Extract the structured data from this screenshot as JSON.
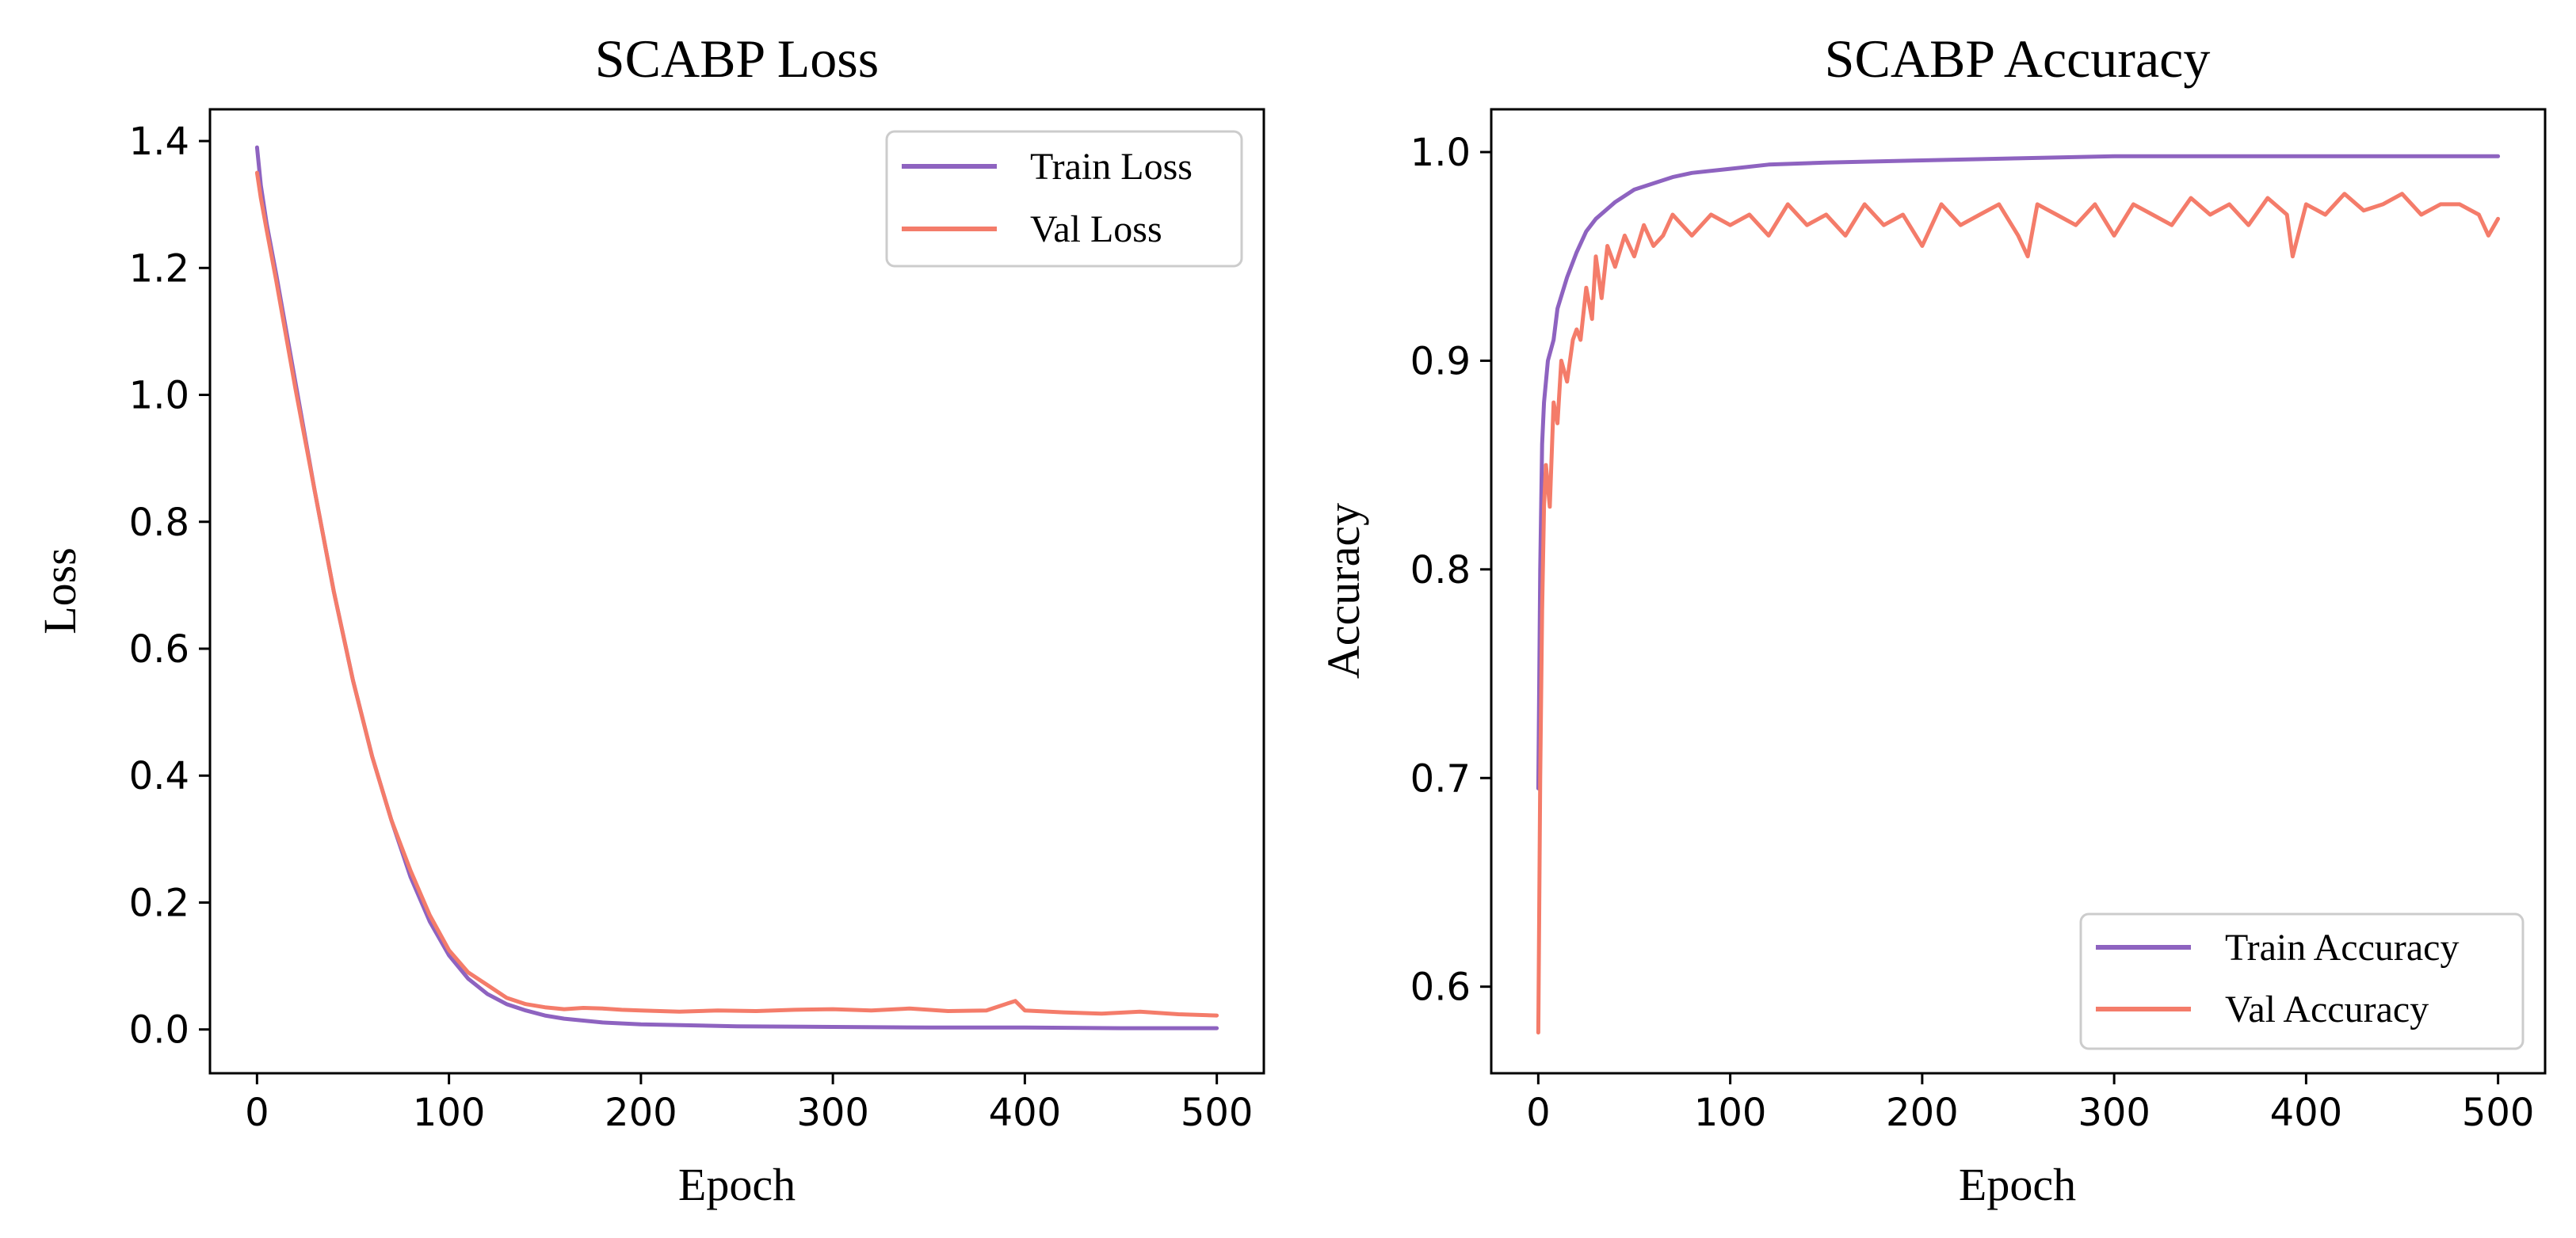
{
  "colors": {
    "train": "#8e63c0",
    "val": "#f47c6a",
    "axis": "#000000",
    "legend_border": "#cccccc"
  },
  "chart_data": [
    {
      "type": "line",
      "title": "SCABP Loss",
      "xlabel": "Epoch",
      "ylabel": "Loss",
      "xlim": [
        -24.5,
        524.5
      ],
      "ylim": [
        -0.069,
        1.45
      ],
      "xticks": [
        0,
        100,
        200,
        300,
        400,
        500
      ],
      "xtick_labels": [
        "0",
        "100",
        "200",
        "300",
        "400",
        "500"
      ],
      "yticks": [
        0.0,
        0.2,
        0.4,
        0.6,
        0.8,
        1.0,
        1.2,
        1.4
      ],
      "ytick_labels": [
        "0.0",
        "0.2",
        "0.4",
        "0.6",
        "0.8",
        "1.0",
        "1.2",
        "1.4"
      ],
      "legend": "top-right",
      "series": [
        {
          "name": "Train Loss",
          "color_key": "train",
          "x": [
            0,
            2,
            5,
            10,
            20,
            30,
            40,
            50,
            60,
            70,
            80,
            90,
            100,
            110,
            120,
            130,
            140,
            150,
            160,
            180,
            200,
            250,
            300,
            350,
            400,
            450,
            500
          ],
          "y": [
            1.39,
            1.33,
            1.27,
            1.19,
            1.02,
            0.85,
            0.69,
            0.55,
            0.43,
            0.33,
            0.24,
            0.17,
            0.117,
            0.08,
            0.056,
            0.04,
            0.03,
            0.022,
            0.017,
            0.011,
            0.008,
            0.005,
            0.004,
            0.003,
            0.003,
            0.002,
            0.002
          ]
        },
        {
          "name": "Val Loss",
          "color_key": "val",
          "x": [
            0,
            2,
            5,
            10,
            20,
            30,
            40,
            50,
            60,
            70,
            80,
            90,
            100,
            110,
            120,
            130,
            140,
            150,
            160,
            170,
            180,
            190,
            200,
            220,
            240,
            260,
            280,
            300,
            320,
            340,
            360,
            380,
            395,
            400,
            420,
            440,
            460,
            480,
            500
          ],
          "y": [
            1.35,
            1.31,
            1.26,
            1.18,
            1.01,
            0.85,
            0.69,
            0.55,
            0.43,
            0.33,
            0.25,
            0.18,
            0.125,
            0.09,
            0.07,
            0.05,
            0.04,
            0.035,
            0.032,
            0.034,
            0.033,
            0.031,
            0.03,
            0.028,
            0.03,
            0.029,
            0.031,
            0.032,
            0.03,
            0.033,
            0.029,
            0.03,
            0.045,
            0.03,
            0.027,
            0.025,
            0.028,
            0.024,
            0.022
          ]
        }
      ]
    },
    {
      "type": "line",
      "title": "SCABP Accuracy",
      "xlabel": "Epoch",
      "ylabel": "Accuracy",
      "xlim": [
        -24.5,
        524.5
      ],
      "ylim": [
        0.5585,
        1.0205
      ],
      "xticks": [
        0,
        100,
        200,
        300,
        400,
        500
      ],
      "xtick_labels": [
        "0",
        "100",
        "200",
        "300",
        "400",
        "500"
      ],
      "yticks": [
        0.6,
        0.7,
        0.8,
        0.9,
        1.0
      ],
      "ytick_labels": [
        "0.6",
        "0.7",
        "0.8",
        "0.9",
        "1.0"
      ],
      "legend": "bottom-right",
      "series": [
        {
          "name": "Train Accuracy",
          "color_key": "train",
          "x": [
            0,
            1,
            2,
            3,
            5,
            8,
            10,
            15,
            20,
            25,
            30,
            40,
            50,
            60,
            70,
            80,
            100,
            120,
            150,
            200,
            250,
            300,
            350,
            400,
            450,
            500
          ],
          "y": [
            0.695,
            0.8,
            0.86,
            0.88,
            0.9,
            0.91,
            0.925,
            0.94,
            0.952,
            0.962,
            0.968,
            0.976,
            0.982,
            0.985,
            0.988,
            0.99,
            0.992,
            0.994,
            0.995,
            0.996,
            0.997,
            0.998,
            0.998,
            0.998,
            0.998,
            0.998
          ]
        },
        {
          "name": "Val Accuracy",
          "color_key": "val",
          "x": [
            0,
            1,
            2,
            3,
            4,
            6,
            8,
            10,
            12,
            15,
            18,
            20,
            22,
            25,
            28,
            30,
            33,
            36,
            40,
            45,
            50,
            55,
            60,
            65,
            70,
            80,
            90,
            100,
            110,
            120,
            130,
            140,
            150,
            160,
            170,
            180,
            190,
            200,
            210,
            220,
            230,
            240,
            250,
            255,
            260,
            270,
            280,
            290,
            300,
            310,
            320,
            330,
            340,
            350,
            360,
            370,
            380,
            390,
            393,
            400,
            410,
            420,
            430,
            440,
            450,
            460,
            470,
            480,
            490,
            495,
            500
          ],
          "y": [
            0.578,
            0.7,
            0.78,
            0.83,
            0.85,
            0.83,
            0.88,
            0.87,
            0.9,
            0.89,
            0.91,
            0.915,
            0.91,
            0.935,
            0.92,
            0.95,
            0.93,
            0.955,
            0.945,
            0.96,
            0.95,
            0.965,
            0.955,
            0.96,
            0.97,
            0.96,
            0.97,
            0.965,
            0.97,
            0.96,
            0.975,
            0.965,
            0.97,
            0.96,
            0.975,
            0.965,
            0.97,
            0.955,
            0.975,
            0.965,
            0.97,
            0.975,
            0.96,
            0.95,
            0.975,
            0.97,
            0.965,
            0.975,
            0.96,
            0.975,
            0.97,
            0.965,
            0.978,
            0.97,
            0.975,
            0.965,
            0.978,
            0.97,
            0.95,
            0.975,
            0.97,
            0.98,
            0.972,
            0.975,
            0.98,
            0.97,
            0.975,
            0.975,
            0.97,
            0.96,
            0.968
          ]
        }
      ]
    }
  ]
}
